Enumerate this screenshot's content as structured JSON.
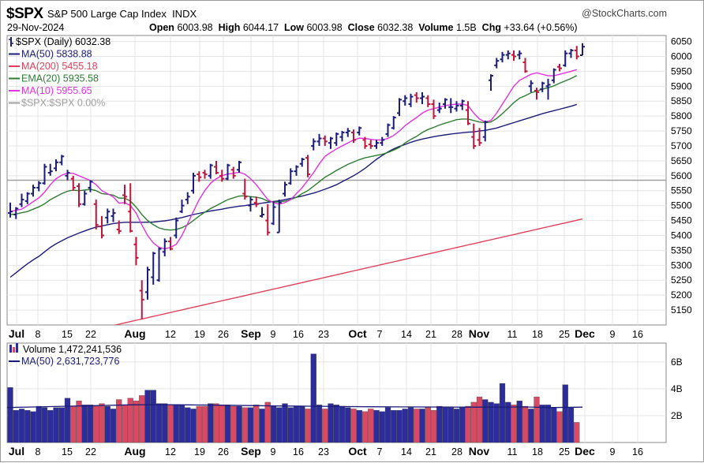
{
  "header": {
    "symbol": "$SPX",
    "name": "S&P 500 Large Cap Index",
    "exchange": "INDX",
    "logo_text": "@StockCharts.com",
    "date": "29-Nov-2024",
    "open_label": "Open",
    "open": "6003.98",
    "high_label": "High",
    "high": "6044.17",
    "low_label": "Low",
    "low": "6003.98",
    "close_label": "Close",
    "close": "6032.38",
    "volume_label": "Volume",
    "volume": "1.5B",
    "chg_label": "Chg",
    "chg": "+33.64 (+0.56%)"
  },
  "colors": {
    "up": "#1c1c7a",
    "down": "#c2143a",
    "ma50": "#1c1c7a",
    "ma200": "#e0405a",
    "ema20": "#2e7d32",
    "ma10": "#e033e0",
    "ref": "#a0a0a0",
    "vol_up": "#2c2c9a",
    "vol_down": "#d64a63",
    "grid": "#e4e4e4"
  },
  "chart_data": [
    {
      "type": "candlestick",
      "title": "$SPX (Daily) 6032.38",
      "ylim": [
        5100,
        6070
      ],
      "y_ticks": [
        5150,
        5200,
        5250,
        5300,
        5350,
        5400,
        5450,
        5500,
        5550,
        5600,
        5650,
        5700,
        5750,
        5800,
        5850,
        5900,
        5950,
        6000,
        6050
      ],
      "x_ticks": [
        "Jul",
        "8",
        "15",
        "22",
        "Aug",
        "12",
        "19",
        "26",
        "Sep",
        "9",
        "16",
        "23",
        "Oct",
        "7",
        "14",
        "21",
        "28",
        "Nov",
        "11",
        "18",
        "25",
        "Dec",
        "9",
        "16"
      ],
      "grid": true,
      "legend_position": "top-left",
      "legend": [
        {
          "key": "price",
          "text": "$SPX (Daily) 6032.38"
        },
        {
          "key": "ma50",
          "text": "MA(50) 5838.88"
        },
        {
          "key": "ma200",
          "text": "MA(200) 5455.18"
        },
        {
          "key": "ema20",
          "text": "EMA(20) 5935.58"
        },
        {
          "key": "ma10",
          "text": "MA(10) 5955.65"
        },
        {
          "key": "ref",
          "text": "$SPX:$SPX 0.00%"
        }
      ],
      "reference_line": 5585,
      "ohlc": [
        [
          5475,
          5510,
          5460,
          5480
        ],
        [
          5470,
          5495,
          5455,
          5490
        ],
        [
          5505,
          5540,
          5495,
          5520
        ],
        [
          5515,
          5545,
          5505,
          5540
        ],
        [
          5540,
          5570,
          5530,
          5560
        ],
        [
          5560,
          5582,
          5548,
          5575
        ],
        [
          5575,
          5640,
          5570,
          5630
        ],
        [
          5610,
          5640,
          5600,
          5615
        ],
        [
          5625,
          5655,
          5615,
          5645
        ],
        [
          5645,
          5670,
          5635,
          5665
        ],
        [
          5600,
          5620,
          5585,
          5610
        ],
        [
          5590,
          5600,
          5550,
          5560
        ],
        [
          5565,
          5575,
          5495,
          5505
        ],
        [
          5505,
          5550,
          5500,
          5540
        ],
        [
          5560,
          5585,
          5545,
          5580
        ],
        [
          5505,
          5520,
          5420,
          5435
        ],
        [
          5430,
          5465,
          5390,
          5400
        ],
        [
          5460,
          5490,
          5440,
          5480
        ],
        [
          5465,
          5490,
          5445,
          5475
        ],
        [
          5420,
          5450,
          5405,
          5415
        ],
        [
          5535,
          5570,
          5505,
          5530
        ],
        [
          5480,
          5575,
          5410,
          5415
        ],
        [
          5370,
          5395,
          5300,
          5325
        ],
        [
          5215,
          5250,
          5120,
          5185
        ],
        [
          5210,
          5295,
          5185,
          5285
        ],
        [
          5260,
          5345,
          5235,
          5340
        ],
        [
          5250,
          5360,
          5245,
          5355
        ],
        [
          5345,
          5390,
          5330,
          5380
        ],
        [
          5380,
          5395,
          5350,
          5355
        ],
        [
          5400,
          5460,
          5390,
          5450
        ],
        [
          5480,
          5520,
          5475,
          5500
        ],
        [
          5520,
          5545,
          5505,
          5530
        ],
        [
          5550,
          5610,
          5540,
          5600
        ],
        [
          5605,
          5615,
          5580,
          5595
        ],
        [
          5610,
          5620,
          5590,
          5605
        ],
        [
          5600,
          5640,
          5590,
          5635
        ],
        [
          5630,
          5650,
          5605,
          5610
        ],
        [
          5600,
          5620,
          5580,
          5590
        ],
        [
          5590,
          5640,
          5585,
          5635
        ],
        [
          5620,
          5630,
          5590,
          5600
        ],
        [
          5620,
          5650,
          5610,
          5645
        ],
        [
          5540,
          5590,
          5520,
          5530
        ],
        [
          5500,
          5530,
          5480,
          5520
        ],
        [
          5510,
          5530,
          5495,
          5505
        ],
        [
          5465,
          5495,
          5460,
          5470
        ],
        [
          5450,
          5505,
          5400,
          5410
        ],
        [
          5440,
          5515,
          5435,
          5495
        ],
        [
          5410,
          5520,
          5410,
          5510
        ],
        [
          5540,
          5580,
          5530,
          5570
        ],
        [
          5575,
          5625,
          5570,
          5615
        ],
        [
          5615,
          5635,
          5600,
          5630
        ],
        [
          5640,
          5660,
          5630,
          5655
        ],
        [
          5660,
          5670,
          5595,
          5605
        ],
        [
          5700,
          5725,
          5685,
          5715
        ],
        [
          5715,
          5740,
          5700,
          5725
        ],
        [
          5725,
          5735,
          5700,
          5715
        ],
        [
          5710,
          5730,
          5690,
          5725
        ],
        [
          5710,
          5745,
          5700,
          5740
        ],
        [
          5730,
          5750,
          5715,
          5745
        ],
        [
          5745,
          5760,
          5730,
          5750
        ],
        [
          5745,
          5755,
          5710,
          5720
        ],
        [
          5745,
          5765,
          5735,
          5760
        ],
        [
          5720,
          5730,
          5690,
          5700
        ],
        [
          5705,
          5720,
          5690,
          5700
        ],
        [
          5700,
          5720,
          5690,
          5710
        ],
        [
          5710,
          5730,
          5700,
          5720
        ],
        [
          5740,
          5775,
          5730,
          5770
        ],
        [
          5760,
          5800,
          5755,
          5795
        ],
        [
          5810,
          5860,
          5800,
          5855
        ],
        [
          5850,
          5870,
          5835,
          5860
        ],
        [
          5840,
          5875,
          5830,
          5865
        ],
        [
          5870,
          5880,
          5845,
          5860
        ],
        [
          5860,
          5880,
          5840,
          5865
        ],
        [
          5860,
          5870,
          5830,
          5840
        ],
        [
          5840,
          5855,
          5790,
          5800
        ],
        [
          5820,
          5845,
          5810,
          5825
        ],
        [
          5840,
          5860,
          5825,
          5855
        ],
        [
          5830,
          5860,
          5810,
          5830
        ],
        [
          5825,
          5850,
          5815,
          5835
        ],
        [
          5835,
          5855,
          5820,
          5850
        ],
        [
          5820,
          5850,
          5770,
          5775
        ],
        [
          5730,
          5775,
          5690,
          5700
        ],
        [
          5720,
          5760,
          5700,
          5710
        ],
        [
          5730,
          5785,
          5715,
          5780
        ],
        [
          5920,
          5940,
          5885,
          5935
        ],
        [
          5970,
          5995,
          5960,
          5985
        ],
        [
          5990,
          6015,
          5980,
          6005
        ],
        [
          6005,
          6020,
          5990,
          6010
        ],
        [
          6005,
          6020,
          5985,
          6000
        ],
        [
          6005,
          6020,
          5990,
          6010
        ],
        [
          5980,
          5995,
          5945,
          5950
        ],
        [
          5900,
          5920,
          5880,
          5910
        ],
        [
          5885,
          5895,
          5855,
          5880
        ],
        [
          5890,
          5915,
          5880,
          5910
        ],
        [
          5900,
          5925,
          5855,
          5905
        ],
        [
          5920,
          5960,
          5910,
          5955
        ],
        [
          5965,
          5975,
          5950,
          5960
        ],
        [
          5970,
          6020,
          5965,
          6010
        ],
        [
          6010,
          6025,
          5995,
          6020
        ],
        [
          6020,
          6035,
          5990,
          6000
        ],
        [
          6003.98,
          6044.17,
          6003.98,
          6032.38
        ]
      ],
      "ma10": [
        5480,
        5484,
        5488,
        5500,
        5513,
        5526,
        5545,
        5570,
        5590,
        5602,
        5609,
        5608,
        5600,
        5592,
        5584,
        5570,
        5550,
        5540,
        5529,
        5508,
        5510,
        5500,
        5475,
        5435,
        5400,
        5375,
        5360,
        5355,
        5360,
        5370,
        5400,
        5440,
        5480,
        5520,
        5550,
        5575,
        5590,
        5600,
        5606,
        5608,
        5612,
        5605,
        5590,
        5570,
        5545,
        5520,
        5510,
        5505,
        5510,
        5520,
        5540,
        5560,
        5585,
        5610,
        5640,
        5665,
        5678,
        5690,
        5700,
        5710,
        5720,
        5726,
        5725,
        5722,
        5720,
        5720,
        5725,
        5735,
        5750,
        5768,
        5782,
        5795,
        5810,
        5820,
        5825,
        5830,
        5835,
        5838,
        5840,
        5840,
        5835,
        5810,
        5790,
        5780,
        5785,
        5810,
        5840,
        5870,
        5900,
        5920,
        5930,
        5940,
        5945,
        5940,
        5935,
        5935,
        5940,
        5945,
        5950,
        5955.65
      ],
      "ema20": [
        5470,
        5472,
        5476,
        5480,
        5488,
        5496,
        5506,
        5520,
        5530,
        5540,
        5548,
        5552,
        5550,
        5552,
        5555,
        5550,
        5540,
        5538,
        5535,
        5525,
        5525,
        5515,
        5495,
        5470,
        5450,
        5436,
        5425,
        5420,
        5418,
        5420,
        5426,
        5436,
        5450,
        5465,
        5478,
        5490,
        5500,
        5510,
        5520,
        5526,
        5532,
        5533,
        5530,
        5528,
        5524,
        5515,
        5512,
        5512,
        5515,
        5520,
        5528,
        5540,
        5550,
        5565,
        5580,
        5595,
        5606,
        5618,
        5628,
        5638,
        5646,
        5654,
        5660,
        5664,
        5668,
        5672,
        5678,
        5686,
        5695,
        5710,
        5722,
        5732,
        5745,
        5755,
        5762,
        5770,
        5776,
        5782,
        5788,
        5790,
        5790,
        5785,
        5780,
        5778,
        5780,
        5792,
        5808,
        5826,
        5845,
        5860,
        5868,
        5878,
        5884,
        5890,
        5895,
        5901,
        5910,
        5918,
        5926,
        5935.58
      ],
      "ma50": [
        5260,
        5275,
        5290,
        5305,
        5318,
        5330,
        5345,
        5360,
        5372,
        5382,
        5392,
        5400,
        5408,
        5415,
        5422,
        5428,
        5432,
        5436,
        5440,
        5442,
        5444,
        5444,
        5444,
        5444,
        5444,
        5445,
        5447,
        5449,
        5452,
        5456,
        5460,
        5465,
        5470,
        5474,
        5478,
        5482,
        5485,
        5488,
        5492,
        5495,
        5498,
        5500,
        5503,
        5506,
        5508,
        5511,
        5514,
        5516,
        5520,
        5524,
        5528,
        5532,
        5537,
        5542,
        5548,
        5555,
        5562,
        5570,
        5580,
        5590,
        5600,
        5612,
        5625,
        5640,
        5655,
        5668,
        5680,
        5690,
        5698,
        5705,
        5712,
        5718,
        5723,
        5727,
        5731,
        5734,
        5737,
        5740,
        5742,
        5744,
        5746,
        5747,
        5750,
        5752,
        5756,
        5760,
        5766,
        5772,
        5778,
        5784,
        5790,
        5796,
        5802,
        5808,
        5813,
        5818,
        5823,
        5828,
        5833,
        5838.88
      ],
      "ma200_range": [
        5020,
        5455.18
      ]
    },
    {
      "type": "bar",
      "title": "Volume 1,472,241,536",
      "legend": [
        {
          "key": "volume",
          "text": "Volume 1,472,241,536"
        },
        {
          "key": "ma50",
          "text": "MA(50) 2,631,723,776"
        }
      ],
      "ylim": [
        0,
        7.4
      ],
      "y_ticks": [
        "2B",
        "4B",
        "6B"
      ],
      "values_billions": [
        4.1,
        2.4,
        2.5,
        2.4,
        2.3,
        2.7,
        2.6,
        2.4,
        2.6,
        2.6,
        3.3,
        2.7,
        3.1,
        2.8,
        2.8,
        2.7,
        2.9,
        2.7,
        2.5,
        3.2,
        2.8,
        3.3,
        3.1,
        3.5,
        3.9,
        3.9,
        2.9,
        2.9,
        2.8,
        2.8,
        2.8,
        2.6,
        2.5,
        2.7,
        2.7,
        2.9,
        2.9,
        2.8,
        2.8,
        2.7,
        2.7,
        2.6,
        2.6,
        2.8,
        2.5,
        3.0,
        2.7,
        2.6,
        2.9,
        2.6,
        2.7,
        2.7,
        2.5,
        6.6,
        2.8,
        2.5,
        2.9,
        2.8,
        2.7,
        2.6,
        2.5,
        2.4,
        2.3,
        2.5,
        2.4,
        2.3,
        2.6,
        2.4,
        2.4,
        2.5,
        2.6,
        2.5,
        2.5,
        2.6,
        2.4,
        2.7,
        2.6,
        2.6,
        2.5,
        2.6,
        2.7,
        3.0,
        3.4,
        3.2,
        3.0,
        2.9,
        4.4,
        3.0,
        2.8,
        3.1,
        2.7,
        2.5,
        3.4,
        2.8,
        2.8,
        2.6,
        2.3,
        4.3,
        2.6,
        1.5
      ],
      "volume_ma50": [
        2.6,
        2.65,
        2.7,
        2.75,
        2.8,
        2.82,
        2.8,
        2.78,
        2.75,
        2.72,
        2.7,
        2.68,
        2.66,
        2.65,
        2.64,
        2.63,
        2.63,
        2.65,
        2.6,
        2.63
      ]
    }
  ]
}
